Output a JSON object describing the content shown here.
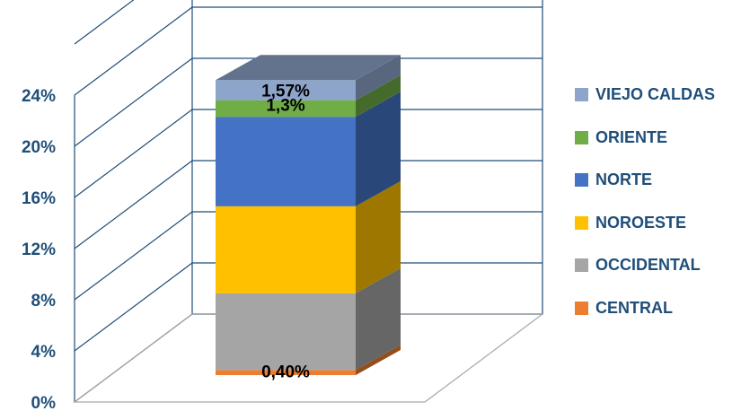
{
  "chart_data": {
    "type": "bar",
    "subtype": "stacked-3d-column",
    "y_tick_labels": [
      "0%",
      "4%",
      "8%",
      "12%",
      "16%",
      "20%",
      "24%"
    ],
    "ylim": [
      0,
      28
    ],
    "grid": true,
    "legend_position": "right",
    "series": [
      {
        "name": "CENTRAL",
        "value": 0.4,
        "color": "#ed7d31",
        "label": "0,40%"
      },
      {
        "name": "OCCIDENTAL",
        "value": 6.0,
        "color": "#a5a5a5"
      },
      {
        "name": "NOROESTE",
        "value": 6.8,
        "color": "#ffc000"
      },
      {
        "name": "NORTE",
        "value": 7.0,
        "color": "#4472c4"
      },
      {
        "name": "ORIENTE",
        "value": 1.3,
        "color": "#70ad47",
        "label": "1,3%"
      },
      {
        "name": "VIEJO CALDAS",
        "value": 1.57,
        "color": "#8ea5cb",
        "label": "1,57%"
      }
    ],
    "legend_order": [
      "VIEJO CALDAS",
      "ORIENTE",
      "NORTE",
      "NOROESTE",
      "OCCIDENTAL",
      "CENTRAL"
    ],
    "axis_color": "#1f4e79"
  }
}
